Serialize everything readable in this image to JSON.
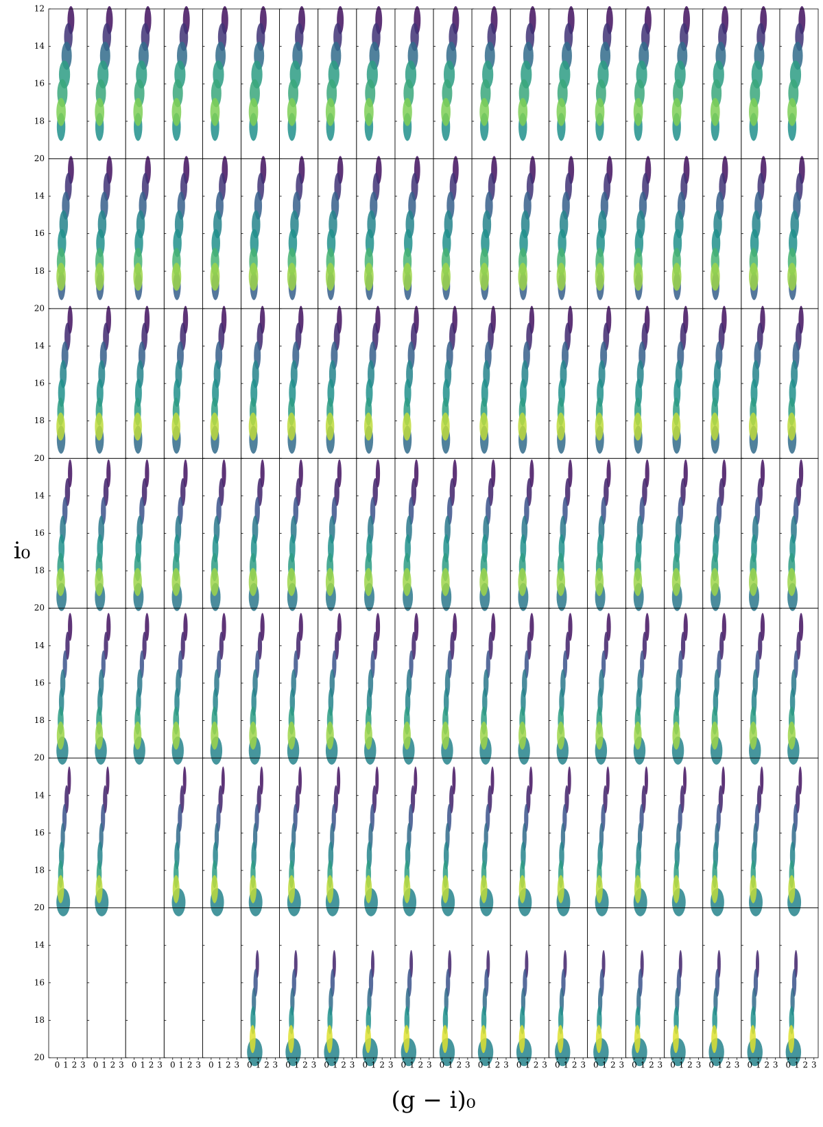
{
  "chart_data": {
    "type": "density-grid",
    "xlabel": "(g − i)₀",
    "ylabel": "i₀",
    "xlim": [
      -1,
      3.5
    ],
    "ylim": [
      20,
      12
    ],
    "xticks": [
      0,
      1,
      2,
      3
    ],
    "yticks": [
      12,
      14,
      16,
      18,
      20
    ],
    "columns": 20,
    "rows": [
      {
        "empty": [],
        "ridge": {
          "mag": [
            12.6,
            13.5,
            14.5,
            15.5,
            16.5,
            17.5,
            18.3
          ],
          "color": [
            1.6,
            1.3,
            1.1,
            0.85,
            0.6,
            0.45,
            0.45
          ],
          "width": [
            0.8,
            1.0,
            1.2,
            1.3,
            1.2,
            1.1,
            1.0
          ],
          "density": [
            0.05,
            0.15,
            0.35,
            0.55,
            0.6,
            0.8,
            0.5
          ]
        }
      },
      {
        "empty": [],
        "ridge": {
          "mag": [
            12.6,
            13.5,
            14.5,
            15.5,
            16.5,
            17.5,
            18.3,
            18.8
          ],
          "color": [
            1.6,
            1.3,
            1.0,
            0.75,
            0.55,
            0.45,
            0.45,
            0.5
          ],
          "width": [
            0.7,
            0.8,
            0.9,
            1.0,
            1.0,
            1.0,
            1.1,
            0.9
          ],
          "density": [
            0.05,
            0.15,
            0.3,
            0.45,
            0.5,
            0.65,
            0.85,
            0.3
          ]
        }
      },
      {
        "empty": [],
        "ridge": {
          "mag": [
            12.6,
            13.5,
            14.5,
            15.5,
            16.5,
            17.5,
            18.3,
            19.0
          ],
          "color": [
            1.5,
            1.2,
            0.9,
            0.7,
            0.5,
            0.4,
            0.4,
            0.45
          ],
          "width": [
            0.6,
            0.7,
            0.8,
            0.8,
            0.8,
            0.8,
            1.0,
            1.0
          ],
          "density": [
            0.05,
            0.12,
            0.3,
            0.45,
            0.5,
            0.55,
            0.9,
            0.35
          ]
        }
      },
      {
        "empty": [],
        "ridge": {
          "mag": [
            12.8,
            13.8,
            14.8,
            15.8,
            16.8,
            17.8,
            18.6,
            19.4
          ],
          "color": [
            1.5,
            1.2,
            0.9,
            0.65,
            0.5,
            0.4,
            0.4,
            0.5
          ],
          "width": [
            0.5,
            0.6,
            0.6,
            0.7,
            0.7,
            0.8,
            1.0,
            1.2
          ],
          "density": [
            0.05,
            0.1,
            0.25,
            0.4,
            0.5,
            0.55,
            0.85,
            0.4
          ]
        }
      },
      {
        "empty": [],
        "ridge": {
          "mag": [
            13,
            14,
            15,
            16,
            17,
            18,
            18.8,
            19.6
          ],
          "color": [
            1.5,
            1.2,
            0.9,
            0.65,
            0.5,
            0.4,
            0.4,
            0.6
          ],
          "width": [
            0.5,
            0.5,
            0.5,
            0.6,
            0.6,
            0.7,
            0.9,
            1.4
          ],
          "density": [
            0.05,
            0.1,
            0.25,
            0.4,
            0.45,
            0.55,
            0.85,
            0.45
          ]
        }
      },
      {
        "empty": [
          2
        ],
        "ridge": {
          "mag": [
            13.2,
            14.2,
            15.2,
            16.2,
            17.2,
            18.2,
            19,
            19.7
          ],
          "color": [
            1.4,
            1.1,
            0.85,
            0.65,
            0.5,
            0.4,
            0.4,
            0.7
          ],
          "width": [
            0.4,
            0.5,
            0.5,
            0.5,
            0.6,
            0.6,
            0.8,
            1.6
          ],
          "density": [
            0.05,
            0.1,
            0.25,
            0.35,
            0.45,
            0.55,
            0.9,
            0.45
          ]
        }
      },
      {
        "empty": [
          0,
          1,
          2,
          3,
          4
        ],
        "ridge": {
          "mag": [
            15,
            16,
            17,
            18,
            19,
            19.7
          ],
          "color": [
            0.9,
            0.7,
            0.5,
            0.4,
            0.35,
            0.6
          ],
          "width": [
            0.4,
            0.5,
            0.5,
            0.6,
            0.7,
            1.8
          ],
          "density": [
            0.1,
            0.25,
            0.35,
            0.5,
            0.95,
            0.45
          ]
        }
      }
    ]
  }
}
